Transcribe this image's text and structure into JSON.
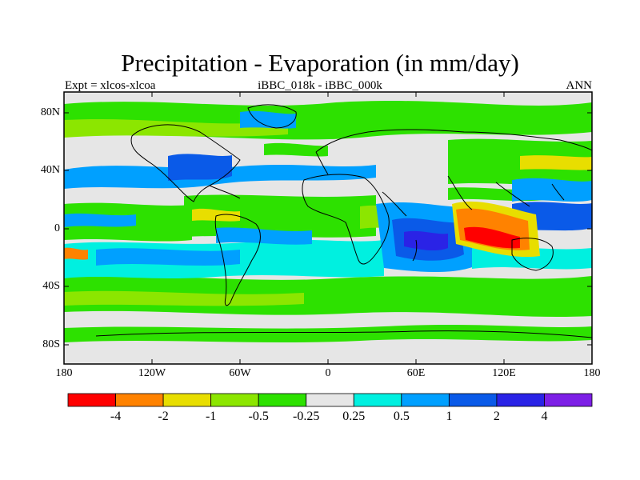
{
  "title": "Precipitation - Evaporation (in mm/day)",
  "left_string": "Expt = xlcos-xlcoa",
  "center_string": "iBBC_018k - iBBC_000k",
  "right_string": "ANN",
  "lat_labels": [
    "80N",
    "40N",
    "0",
    "40S",
    "80S"
  ],
  "lon_labels": [
    "180",
    "120W",
    "60W",
    "0",
    "60E",
    "120E",
    "180"
  ],
  "colorbar": {
    "colors": [
      "#ff0000",
      "#ff8200",
      "#e8de00",
      "#8ce600",
      "#2de100",
      "#e6e6e6",
      "#00f0e0",
      "#00a0ff",
      "#0a5ae8",
      "#2a23e6",
      "#7d1fe6"
    ],
    "labels": [
      "-4",
      "-2",
      "-1",
      "-0.5",
      "-0.25",
      "0.25",
      "0.5",
      "1",
      "2",
      "4"
    ]
  }
}
